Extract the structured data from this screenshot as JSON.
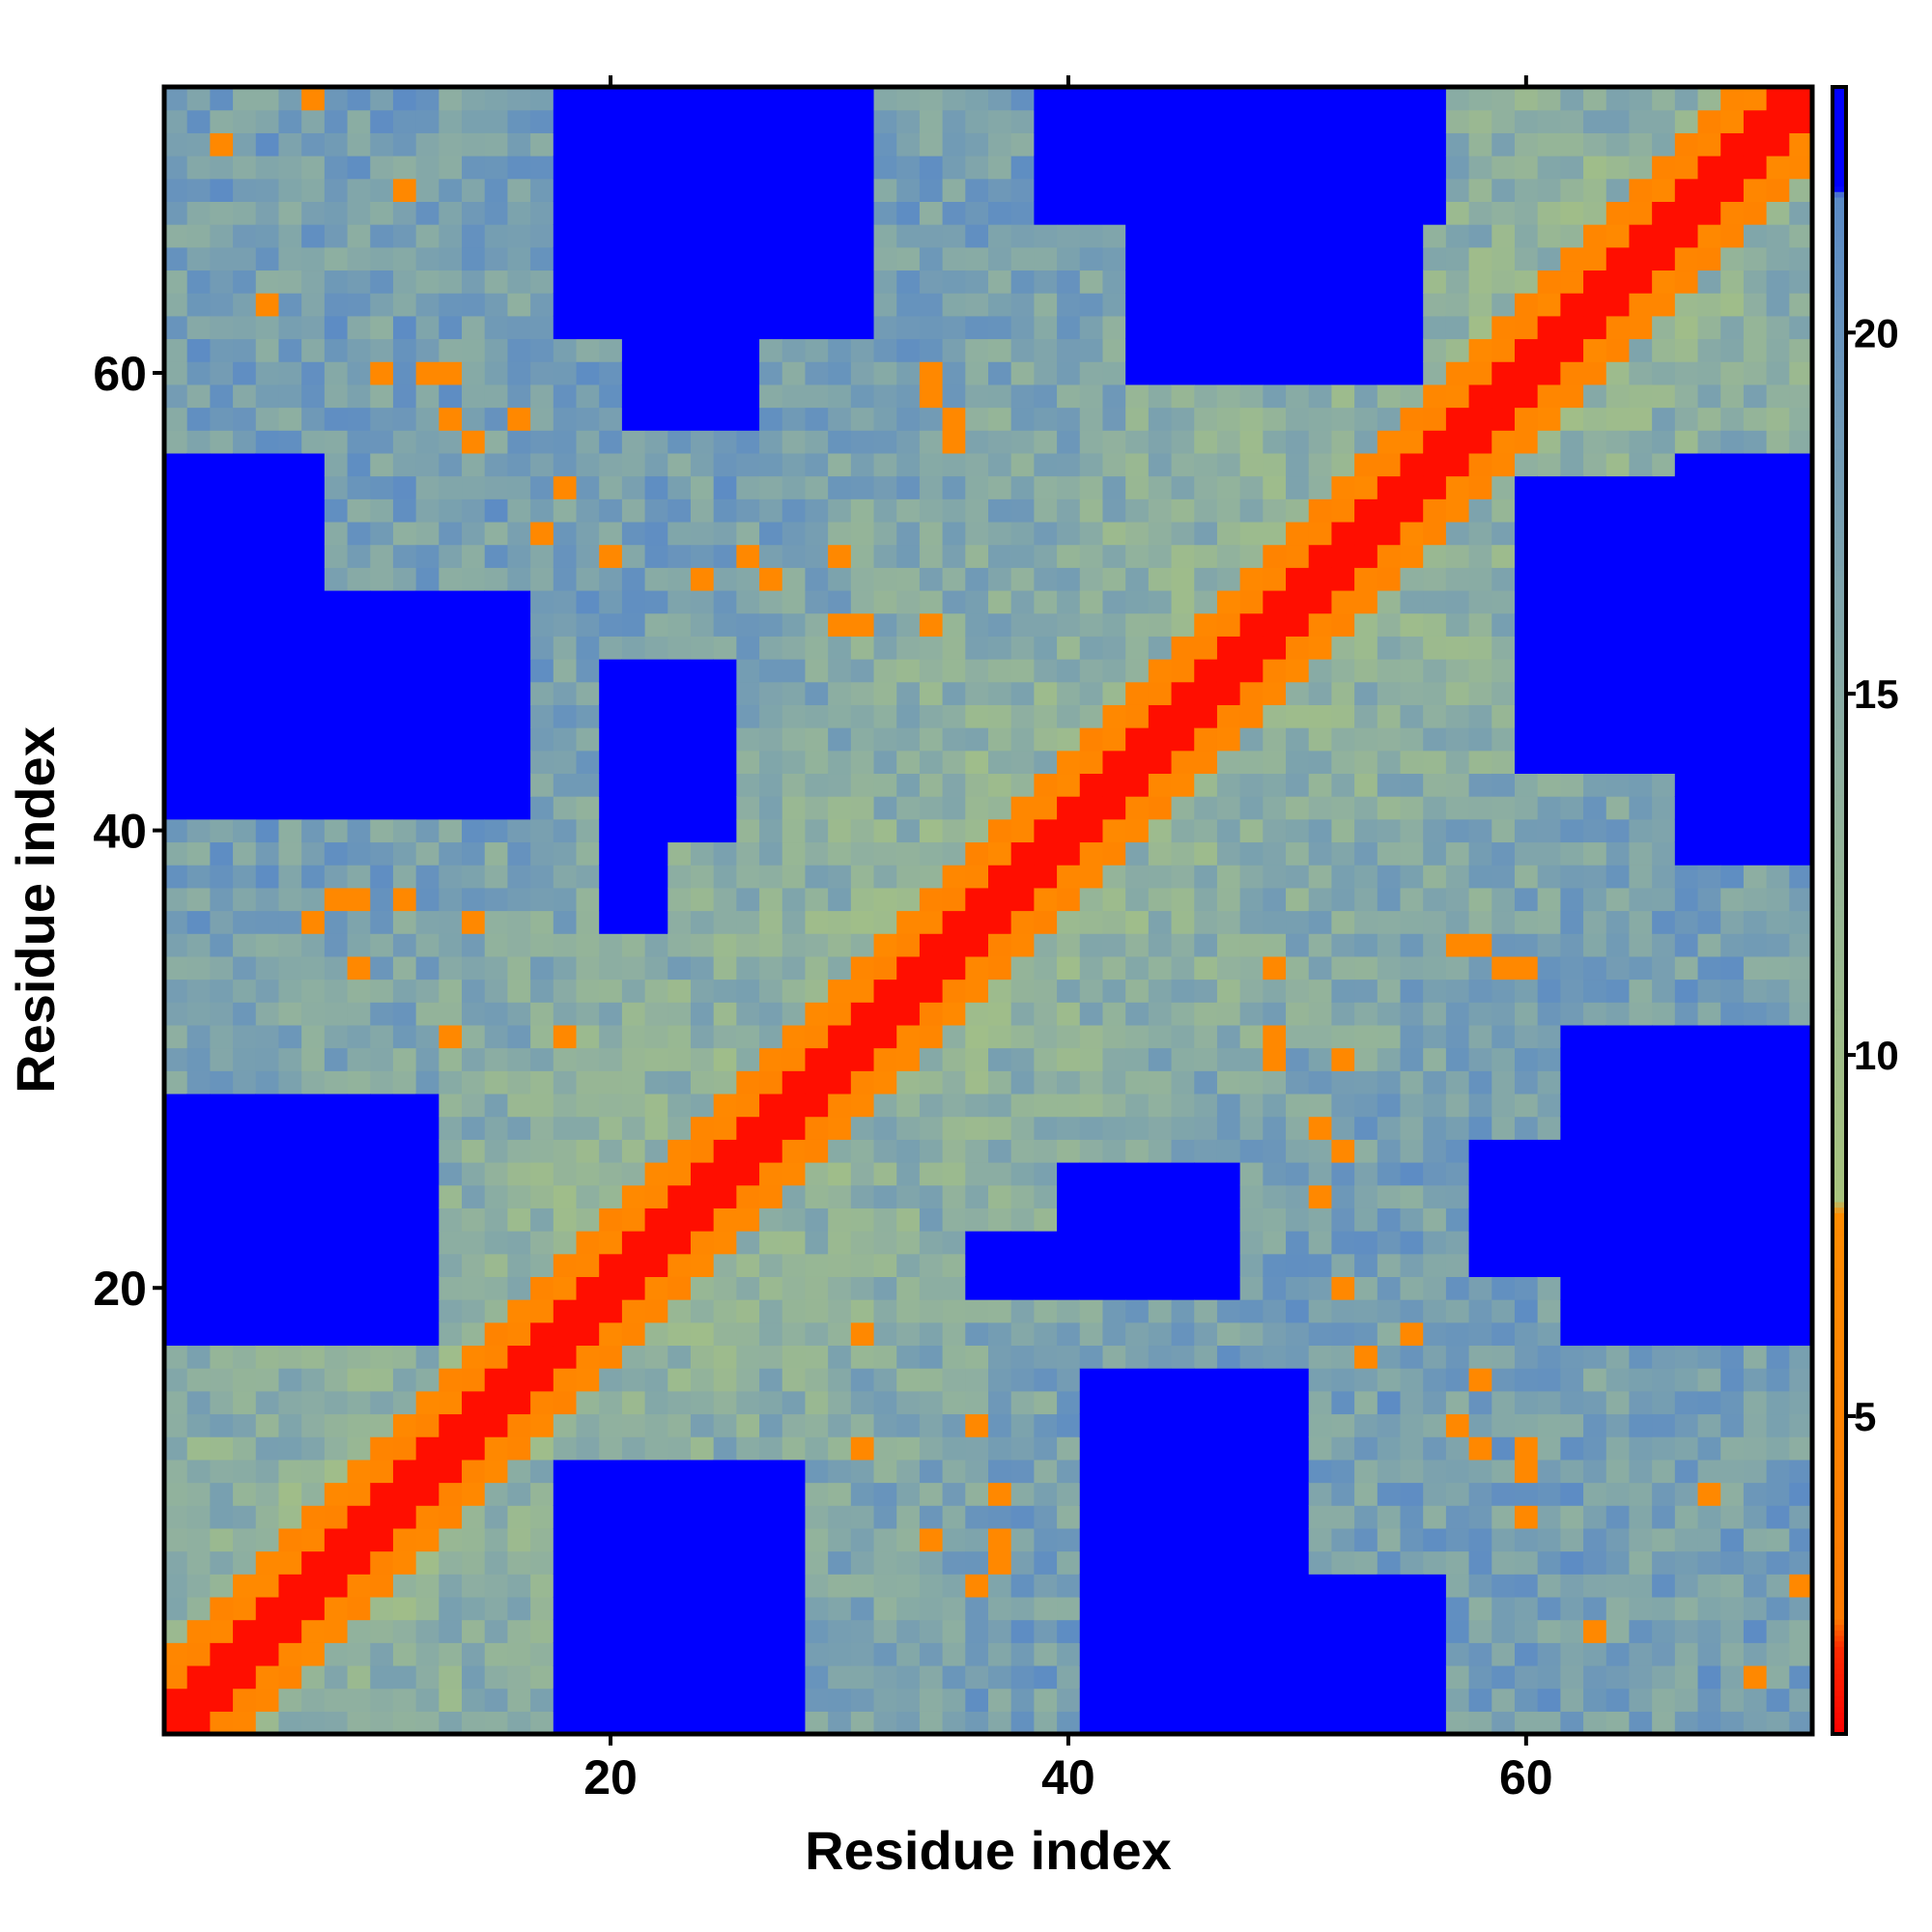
{
  "chart_data": {
    "type": "heatmap",
    "title": "",
    "xlabel": "Residue index",
    "ylabel": "Residue index",
    "n_residues": 72,
    "x_ticks": [
      20,
      40,
      60
    ],
    "y_ticks": [
      20,
      40,
      60
    ],
    "x_tick_labels": [
      "20",
      "40",
      "60"
    ],
    "y_tick_labels": [
      "20",
      "40",
      "60"
    ],
    "colorbar": {
      "range": [
        0.6,
        23.4
      ],
      "ticks": [
        5,
        10,
        15,
        20
      ],
      "tick_labels": [
        "5",
        "10",
        "15",
        "20"
      ],
      "stops": [
        {
          "value": 0.6,
          "color": "#ff0000"
        },
        {
          "value": 1.8,
          "color": "#ff2a00"
        },
        {
          "value": 2.2,
          "color": "#ff7a00"
        },
        {
          "value": 7.8,
          "color": "#ff8c00"
        },
        {
          "value": 8.0,
          "color": "#a8c47e"
        },
        {
          "value": 14.0,
          "color": "#8fb0a0"
        },
        {
          "value": 21.9,
          "color": "#5a8ac6"
        },
        {
          "value": 22.0,
          "color": "#0000ff"
        },
        {
          "value": 23.4,
          "color": "#0000ff"
        }
      ]
    },
    "diagonal": {
      "contact_offset": 1,
      "near_offset": 3
    },
    "far_regions": [
      [
        18,
        31,
        62,
        72
      ],
      [
        21,
        26,
        58,
        61
      ],
      [
        39,
        56,
        67,
        72
      ],
      [
        43,
        55,
        60,
        66
      ],
      [
        1,
        7,
        41,
        56
      ],
      [
        1,
        16,
        41,
        50
      ],
      [
        1,
        12,
        18,
        28
      ],
      [
        40,
        47,
        20,
        25
      ],
      [
        21,
        22,
        36,
        44
      ],
      [
        36,
        39,
        20,
        22
      ]
    ],
    "near_contacts": [
      [
        8,
        37
      ],
      [
        9,
        37
      ],
      [
        11,
        37
      ],
      [
        14,
        36
      ],
      [
        13,
        31
      ],
      [
        18,
        31
      ],
      [
        24,
        51
      ],
      [
        27,
        51
      ],
      [
        31,
        49
      ],
      [
        34,
        49
      ],
      [
        35,
        57
      ],
      [
        35,
        58
      ],
      [
        20,
        43
      ],
      [
        21,
        43
      ],
      [
        16,
        58
      ],
      [
        12,
        60
      ],
      [
        10,
        60
      ],
      [
        13,
        58
      ],
      [
        49,
        30
      ],
      [
        52,
        30
      ],
      [
        52,
        26
      ],
      [
        52,
        20
      ],
      [
        53,
        17
      ],
      [
        55,
        18
      ],
      [
        58,
        16
      ],
      [
        60,
        13
      ],
      [
        63,
        5
      ],
      [
        68,
        11
      ],
      [
        70,
        3
      ],
      [
        72,
        7
      ],
      [
        57,
        14
      ],
      [
        59,
        34
      ],
      [
        60,
        34
      ],
      [
        36,
        7
      ],
      [
        34,
        9
      ]
    ]
  },
  "colors": {
    "frame": "#000000",
    "background": "#ffffff"
  }
}
